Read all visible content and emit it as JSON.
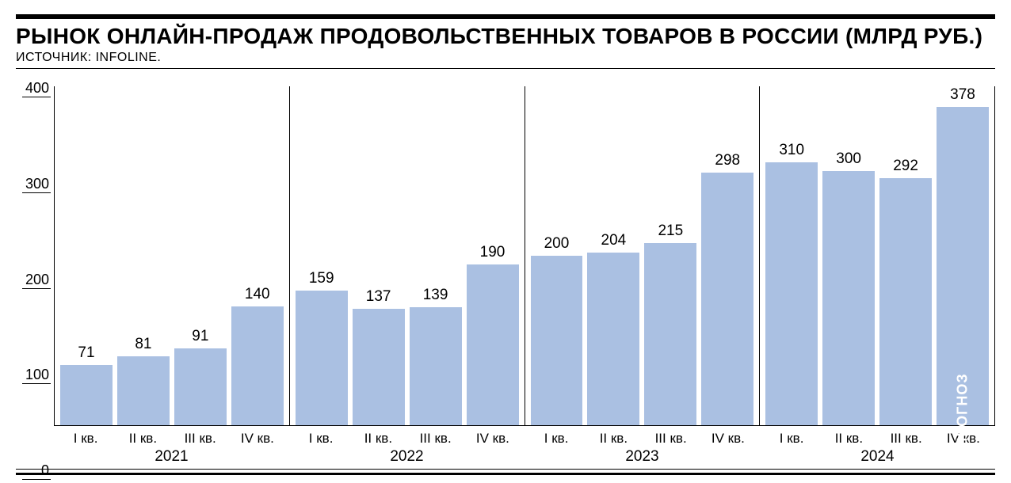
{
  "title": "РЫНОК ОНЛАЙН-ПРОДАЖ ПРОДОВОЛЬСТВЕННЫХ ТОВАРОВ В РОССИИ (МЛРД РУБ.)",
  "source": "ИСТОЧНИК: INFOLINE.",
  "chart": {
    "type": "bar",
    "bar_color": "#aac0e2",
    "background_color": "#ffffff",
    "axis_color": "#000000",
    "text_color": "#000000",
    "forecast_text_color": "#ffffff",
    "title_fontsize": 28,
    "source_fontsize": 16,
    "value_label_fontsize": 19,
    "axis_label_fontsize": 18,
    "y": {
      "min": 0,
      "max": 400,
      "ticks": [
        0,
        100,
        200,
        300,
        400
      ]
    },
    "quarters_per_year": [
      "I кв.",
      "II кв.",
      "III кв.",
      "IV кв."
    ],
    "forecast_label": "ПРОГНОЗ",
    "years": [
      {
        "label": "2021",
        "values": [
          71,
          81,
          91,
          140
        ],
        "forecast": [
          false,
          false,
          false,
          false
        ]
      },
      {
        "label": "2022",
        "values": [
          159,
          137,
          139,
          190
        ],
        "forecast": [
          false,
          false,
          false,
          false
        ]
      },
      {
        "label": "2023",
        "values": [
          200,
          204,
          215,
          298
        ],
        "forecast": [
          false,
          false,
          false,
          false
        ]
      },
      {
        "label": "2024",
        "values": [
          310,
          300,
          292,
          378
        ],
        "forecast": [
          false,
          false,
          false,
          true
        ]
      }
    ]
  }
}
